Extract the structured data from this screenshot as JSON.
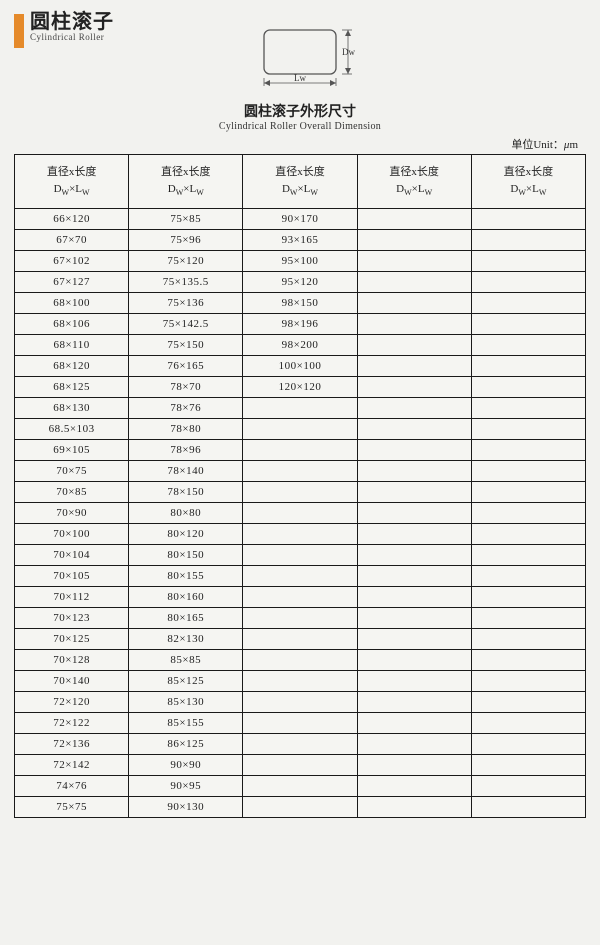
{
  "header": {
    "title_cn": "圆柱滚子",
    "title_en": "Cylindrical Roller",
    "accent_color": "#e58a2a"
  },
  "diagram": {
    "label_d": "Dw",
    "label_l": "Lw",
    "stroke_color": "#555"
  },
  "subtitle": {
    "cn": "圆柱滚子外形尺寸",
    "en": "Cylindrical Roller Overall Dimension"
  },
  "unit": {
    "label": "单位Unit：",
    "symbol": "μ",
    "suffix": "m"
  },
  "table": {
    "header_line1": "直径x长度",
    "header_line2_d": "D",
    "header_line2_dsub": "W",
    "header_line2_x": "×",
    "header_line2_l": "L",
    "header_line2_lsub": "W",
    "num_columns": 5,
    "columns": [
      [
        "66×120",
        "67×70",
        "67×102",
        "67×127",
        "68×100",
        "68×106",
        "68×110",
        "68×120",
        "68×125",
        "68×130",
        "68.5×103",
        "69×105",
        "70×75",
        "70×85",
        "70×90",
        "70×100",
        "70×104",
        "70×105",
        "70×112",
        "70×123",
        "70×125",
        "70×128",
        "70×140",
        "72×120",
        "72×122",
        "72×136",
        "72×142",
        "74×76",
        "75×75"
      ],
      [
        "75×85",
        "75×96",
        "75×120",
        "75×135.5",
        "75×136",
        "75×142.5",
        "75×150",
        "76×165",
        "78×70",
        "78×76",
        "78×80",
        "78×96",
        "78×140",
        "78×150",
        "80×80",
        "80×120",
        "80×150",
        "80×155",
        "80×160",
        "80×165",
        "82×130",
        "85×85",
        "85×125",
        "85×130",
        "85×155",
        "86×125",
        "90×90",
        "90×95",
        "90×130"
      ],
      [
        "90×170",
        "93×165",
        "95×100",
        "95×120",
        "98×150",
        "98×196",
        "98×200",
        "100×100",
        "120×120",
        "",
        "",
        "",
        "",
        "",
        "",
        "",
        "",
        "",
        "",
        "",
        "",
        "",
        "",
        "",
        "",
        "",
        "",
        "",
        ""
      ],
      [
        "",
        "",
        "",
        "",
        "",
        "",
        "",
        "",
        "",
        "",
        "",
        "",
        "",
        "",
        "",
        "",
        "",
        "",
        "",
        "",
        "",
        "",
        "",
        "",
        "",
        "",
        "",
        "",
        ""
      ],
      [
        "",
        "",
        "",
        "",
        "",
        "",
        "",
        "",
        "",
        "",
        "",
        "",
        "",
        "",
        "",
        "",
        "",
        "",
        "",
        "",
        "",
        "",
        "",
        "",
        "",
        "",
        "",
        "",
        ""
      ]
    ],
    "num_rows": 29
  }
}
